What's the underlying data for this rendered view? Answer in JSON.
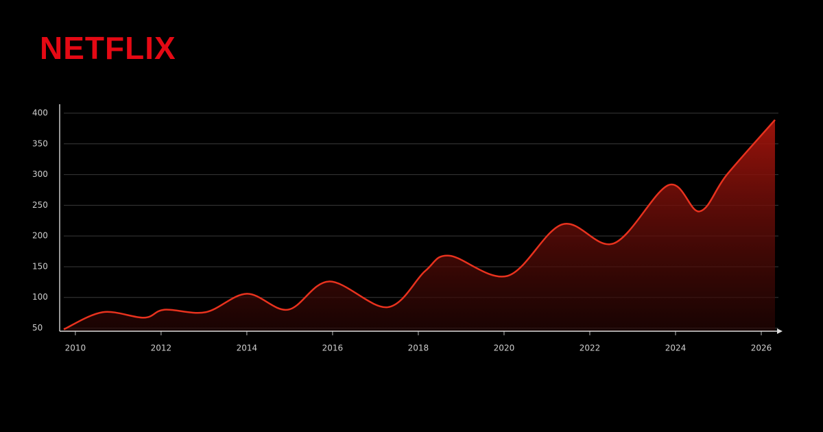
{
  "brand": "NETFLIX",
  "chart_data": {
    "type": "area",
    "x": [
      2009.73,
      2010.64,
      2011.6,
      2012.08,
      2013.04,
      2014.0,
      2014.96,
      2015.92,
      2017.28,
      2018.16,
      2018.72,
      2020.08,
      2021.36,
      2022.56,
      2023.84,
      2024.56,
      2025.2,
      2026.32
    ],
    "values": [
      48,
      76,
      67,
      80,
      76,
      106,
      80,
      126,
      84,
      143,
      168,
      135,
      219,
      188,
      283,
      240,
      300,
      389
    ],
    "color": "#e8321e",
    "xlim": [
      2009.73,
      2026.4
    ],
    "xticks": [
      2010,
      2012,
      2014,
      2016,
      2018,
      2020,
      2022,
      2024,
      2026
    ],
    "ylim": [
      45,
      400
    ],
    "yticks": [
      50,
      100,
      150,
      200,
      250,
      300,
      350,
      400
    ],
    "grid": true
  }
}
